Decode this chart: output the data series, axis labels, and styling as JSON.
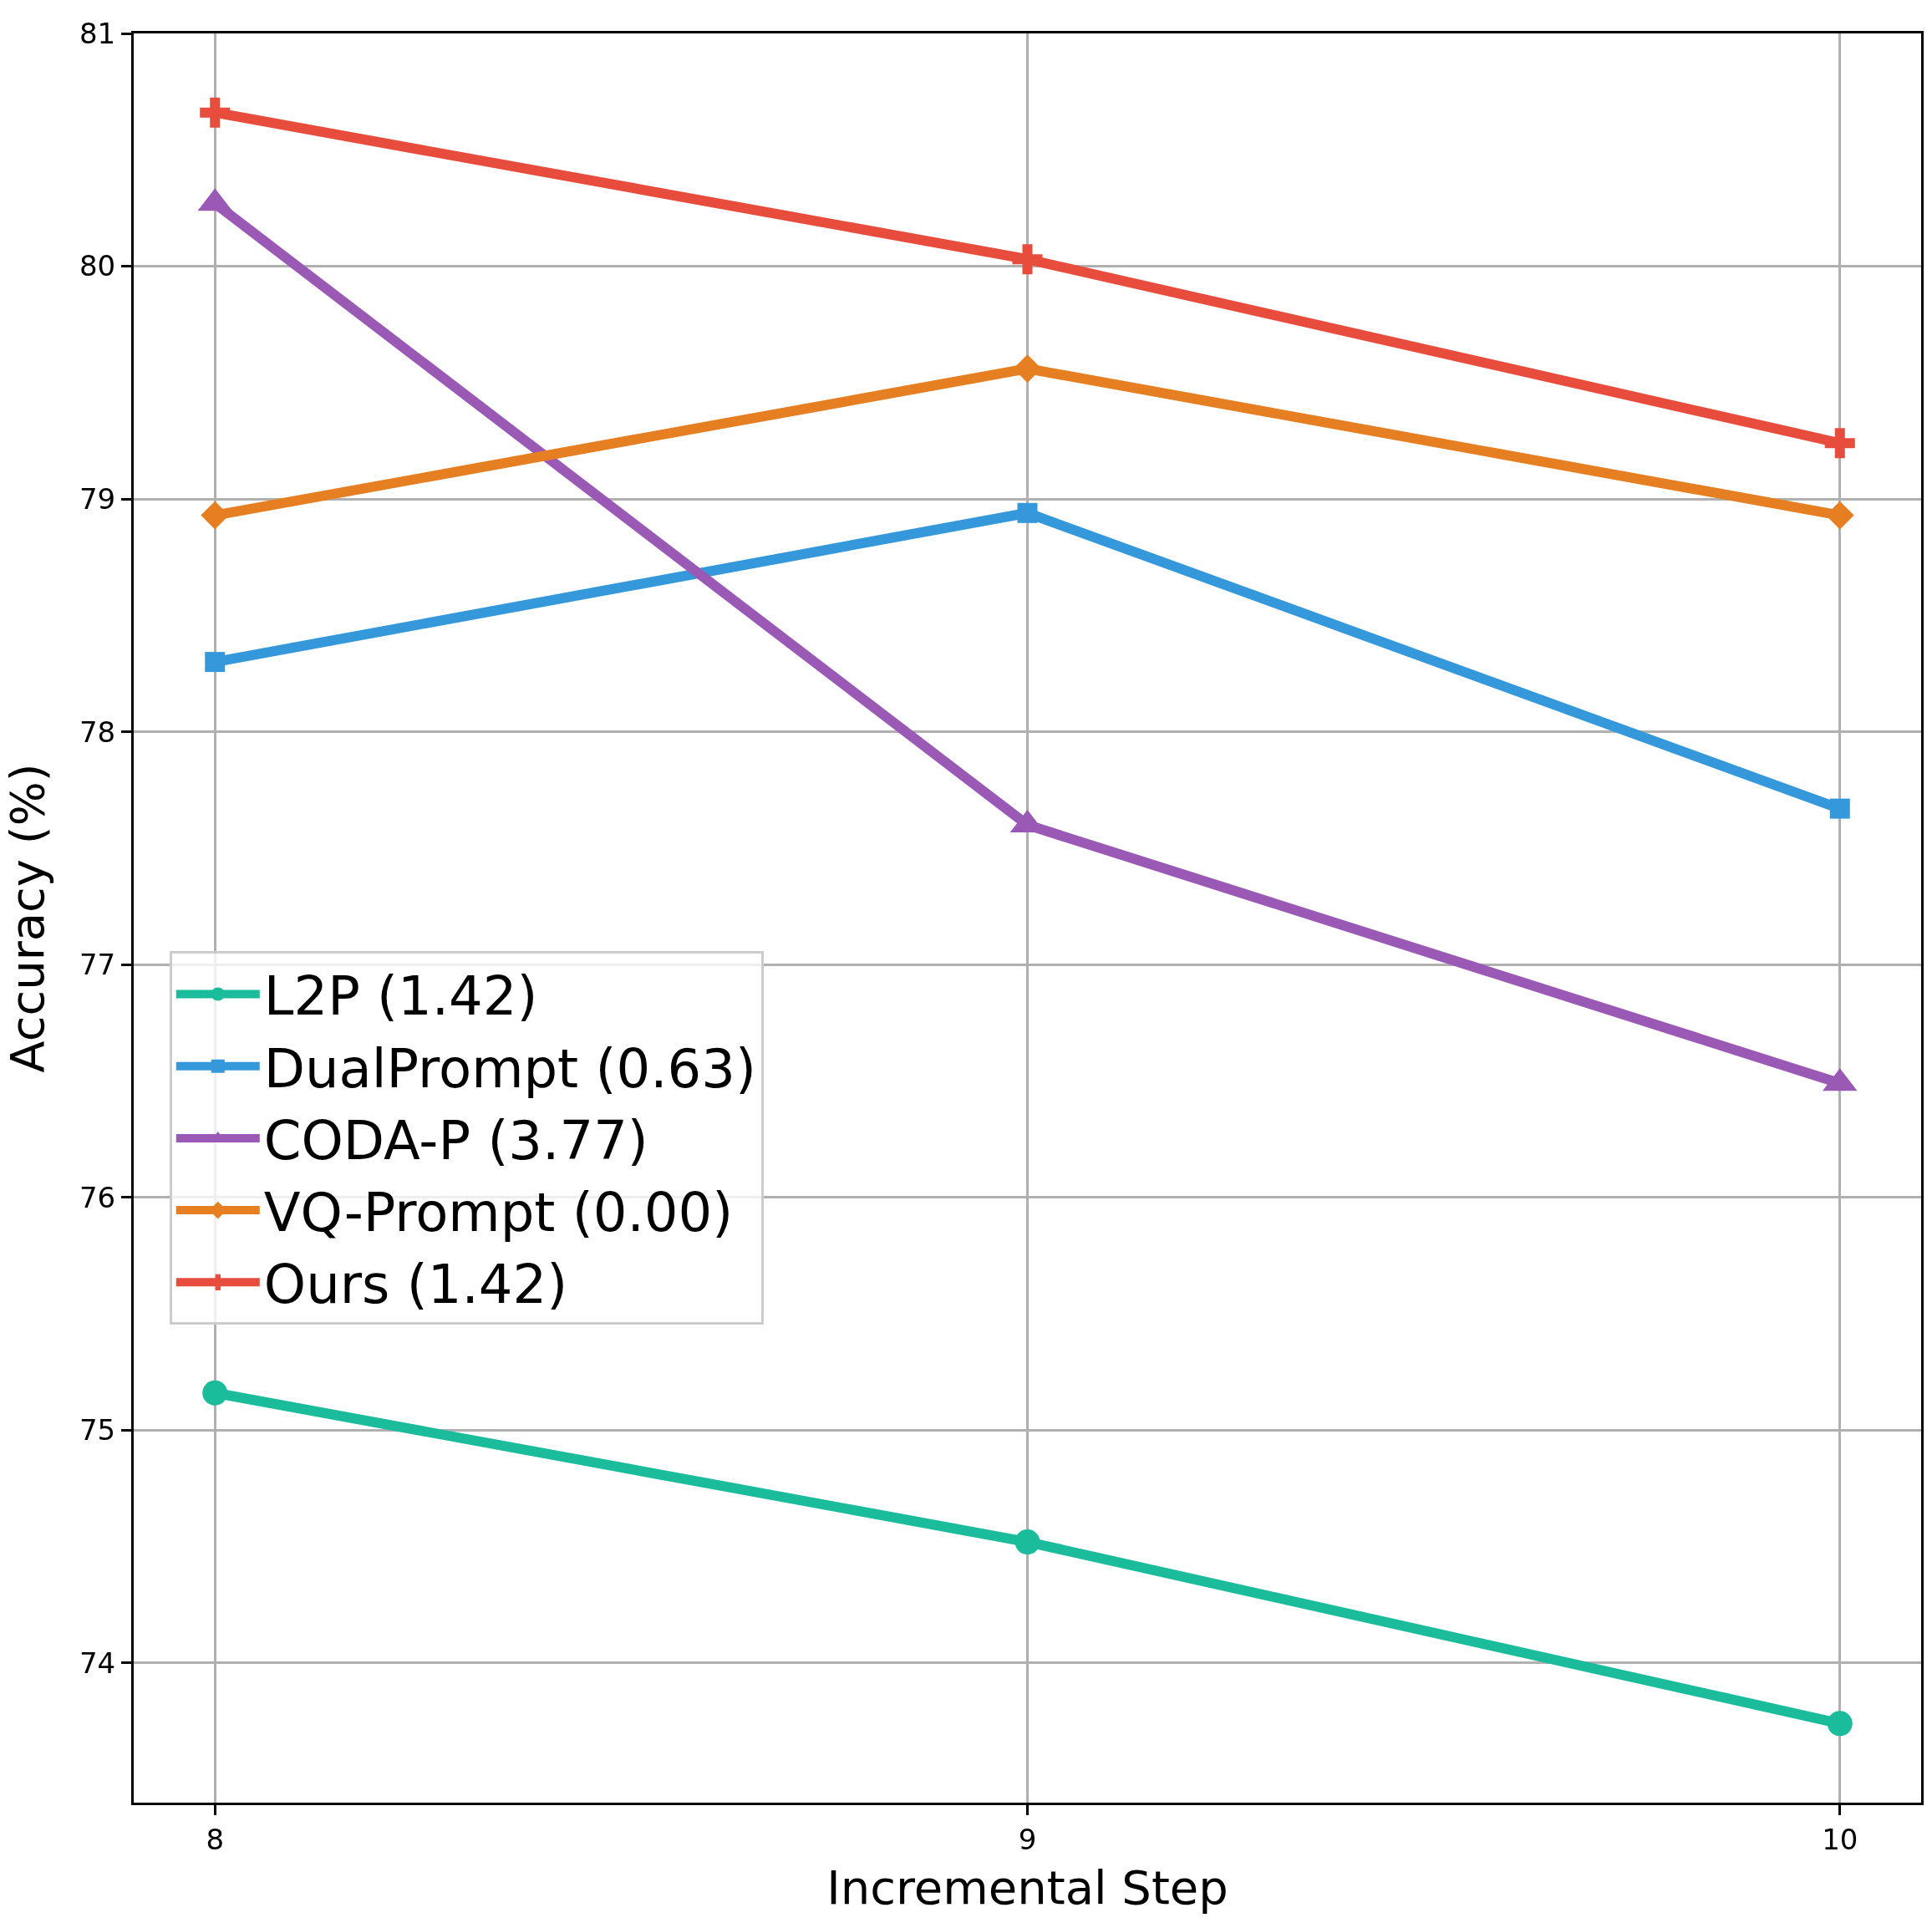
{
  "chart_data": {
    "type": "line",
    "xlabel": "Incremental Step",
    "ylabel": "Accuracy (%)",
    "x": [
      8,
      9,
      10
    ],
    "xlim": [
      7.9,
      10.1
    ],
    "xticks": [
      8,
      9,
      10
    ],
    "ylim": [
      73.4,
      81
    ],
    "yticks": [
      74,
      75,
      76,
      77,
      78,
      79,
      80,
      81
    ],
    "grid": true,
    "legend": "bottom left",
    "line_style": "solid",
    "series": [
      {
        "name": "L2P (1.42)",
        "color": "#1abc9c",
        "marker": "circle",
        "values": [
          75.16,
          74.52,
          73.74
        ]
      },
      {
        "name": "DualPrompt (0.63)",
        "color": "#3498db",
        "marker": "square",
        "values": [
          78.3,
          78.94,
          77.67
        ]
      },
      {
        "name": "CODA-P (3.77)",
        "color": "#9b59b6",
        "marker": "triangle",
        "values": [
          80.27,
          77.6,
          76.49
        ]
      },
      {
        "name": "VQ-Prompt (0.00)",
        "color": "#e67e22",
        "marker": "diamond",
        "values": [
          78.93,
          79.56,
          78.93
        ]
      },
      {
        "name": "Ours (1.42)",
        "color": "#e74c3c",
        "marker": "cross",
        "values": [
          80.66,
          80.03,
          79.24
        ]
      }
    ]
  }
}
